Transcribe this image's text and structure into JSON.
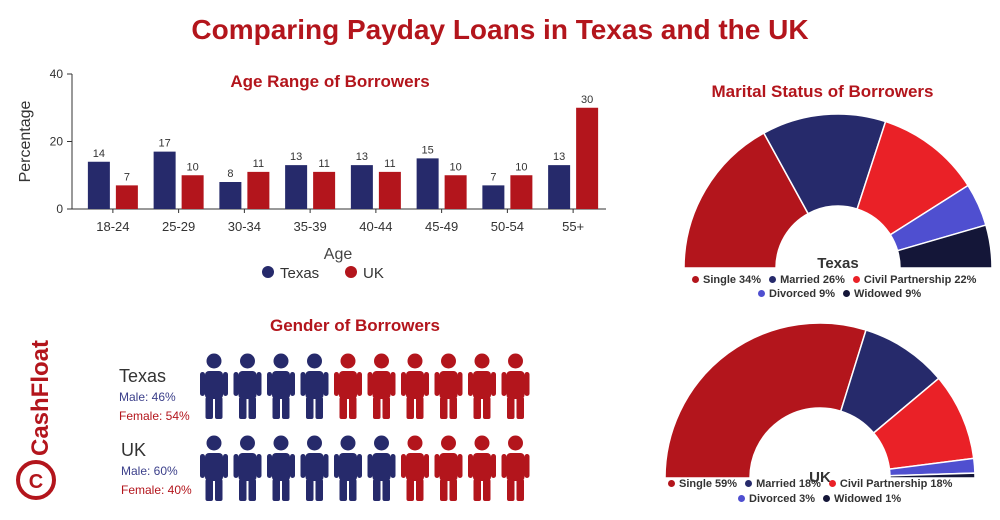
{
  "title": "Comparing Payday Loans in Texas and the UK",
  "colors": {
    "texas": "#262a6b",
    "uk": "#b3151c",
    "civil": "#ea2127",
    "divorced": "#4f4fd0",
    "widowed": "#141638"
  },
  "chart_data": [
    {
      "type": "bar",
      "title": "Age Range of Borrowers",
      "xlabel": "Age",
      "ylabel": "Percentage",
      "ylim": [
        0,
        40
      ],
      "yticks": [
        0,
        20,
        40
      ],
      "categories": [
        "18-24",
        "25-29",
        "30-34",
        "35-39",
        "40-44",
        "45-49",
        "50-54",
        "55+"
      ],
      "series": [
        {
          "name": "Texas",
          "values": [
            14,
            17,
            8,
            13,
            13,
            15,
            7,
            13
          ]
        },
        {
          "name": "UK",
          "values": [
            7,
            10,
            11,
            11,
            11,
            10,
            10,
            30
          ]
        }
      ],
      "legend": "bottom"
    },
    {
      "type": "pie",
      "title": "Marital Status of Borrowers",
      "center_label": "Texas",
      "slices": [
        {
          "label": "Single 34%",
          "value": 34
        },
        {
          "label": "Married 26%",
          "value": 26
        },
        {
          "label": "Civil Partnership 22%",
          "value": 22
        },
        {
          "label": "Divorced 9%",
          "value": 9
        },
        {
          "label": "Widowed 9%",
          "value": 9
        }
      ]
    },
    {
      "type": "pie",
      "center_label": "UK",
      "slices": [
        {
          "label": "Single 59%",
          "value": 59
        },
        {
          "label": "Married 18%",
          "value": 18
        },
        {
          "label": "Civil Partnership 18%",
          "value": 18
        },
        {
          "label": "Divorced 3%",
          "value": 3
        },
        {
          "label": "Widowed 1%",
          "value": 1
        }
      ]
    }
  ],
  "gender": {
    "title": "Gender of Borrowers",
    "rows": [
      {
        "name": "Texas",
        "male": "Male: 46%",
        "female": "Female: 54%",
        "male_icons": 4,
        "total_icons": 10
      },
      {
        "name": "UK",
        "male": "Male: 60%",
        "female": "Female: 40%",
        "male_icons": 6,
        "total_icons": 10
      }
    ]
  },
  "brand": {
    "name": "CashFloat",
    "logo_letter": "C"
  }
}
